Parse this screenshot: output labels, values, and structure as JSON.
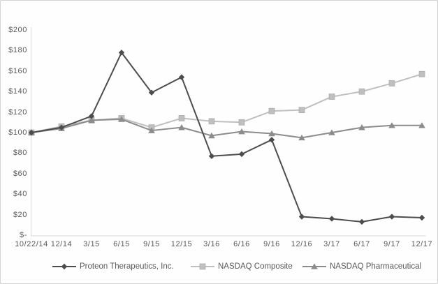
{
  "colors": {
    "axis_text": "#595959",
    "axis_line": "#d9d9d9",
    "frame_border": "#d2d2d2",
    "background": "#ffffff"
  },
  "chart_data": {
    "type": "line",
    "title": "",
    "xlabel": "",
    "ylabel": "",
    "grid": false,
    "legend_position": "bottom",
    "ylim": [
      0,
      200
    ],
    "categories": [
      "10/22/14",
      "12/14",
      "3/15",
      "6/15",
      "9/15",
      "12/15",
      "3/16",
      "6/16",
      "9/16",
      "12/16",
      "3/17",
      "6/17",
      "9/17",
      "12/17"
    ],
    "series": [
      {
        "name": "Proteon Therapeutics, Inc.",
        "marker": "diamond",
        "color": "#4d4d4d",
        "values": [
          100,
          105,
          116,
          178,
          139,
          154,
          77,
          79,
          93,
          18,
          16,
          13,
          18,
          17
        ]
      },
      {
        "name": "NASDAQ Composite",
        "marker": "square",
        "color": "#bfbfbf",
        "values": [
          100,
          106,
          112,
          114,
          105,
          114,
          111,
          110,
          121,
          122,
          135,
          140,
          148,
          157
        ]
      },
      {
        "name": "NASDAQ Pharmaceutical",
        "marker": "triangle",
        "color": "#8c8c8c",
        "values": [
          100,
          104,
          112,
          113,
          102,
          105,
          97,
          101,
          99,
          95,
          100,
          105,
          107,
          107
        ]
      }
    ],
    "y_ticks": [
      {
        "label": "$200",
        "value": 200
      },
      {
        "label": "$180",
        "value": 180
      },
      {
        "label": "$160",
        "value": 160
      },
      {
        "label": "$140",
        "value": 140
      },
      {
        "label": "$120",
        "value": 120
      },
      {
        "label": "$100",
        "value": 100
      },
      {
        "label": "$80",
        "value": 80
      },
      {
        "label": "$60",
        "value": 60
      },
      {
        "label": "$40",
        "value": 40
      },
      {
        "label": "$20",
        "value": 20
      },
      {
        "label": "$-",
        "value": 0
      }
    ]
  }
}
